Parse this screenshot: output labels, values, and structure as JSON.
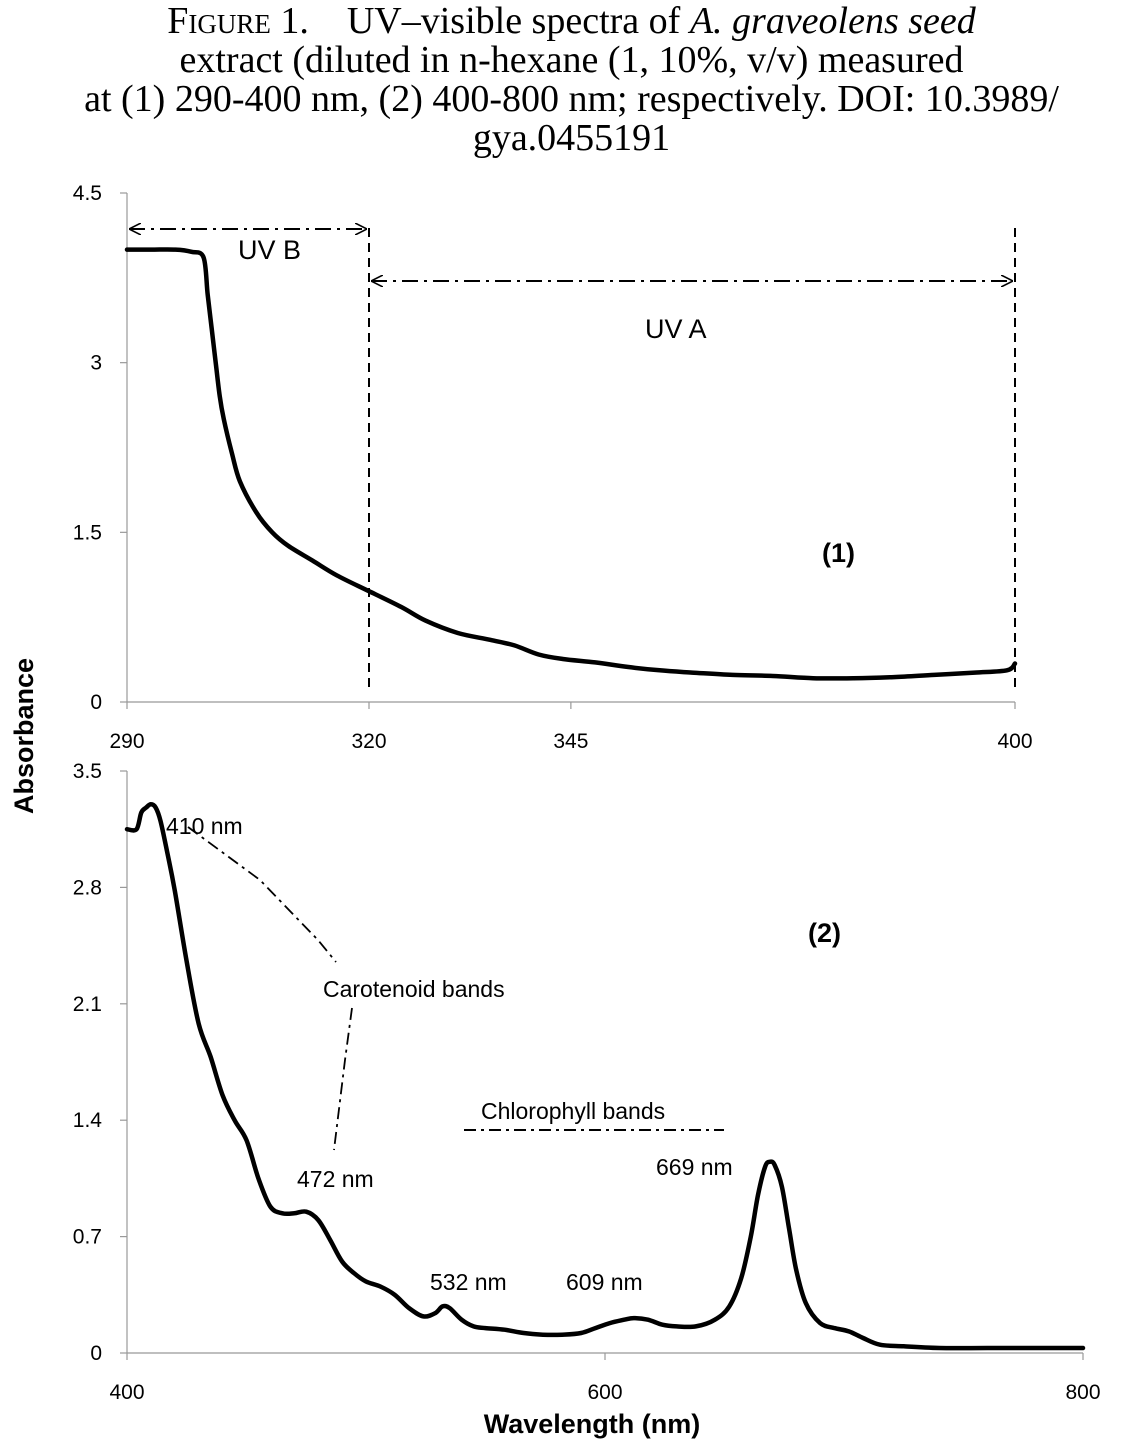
{
  "caption": {
    "figure_label": "Figure 1.",
    "line1": "UV–visible spectra of ",
    "line1_italic": "A. graveolens seed",
    "line2": "extract (diluted in n-hexane (1, 10%, v/v) measured",
    "line3": "at (1) 290-400 nm, (2) 400-800 nm; respectively. DOI: 10.3989/",
    "line4": "gya.0455191"
  },
  "chart_data": [
    {
      "type": "line",
      "panel_label": "(1)",
      "ylabel": "Absorbance",
      "xlim": [
        290,
        400
      ],
      "ylim": [
        0,
        4.5
      ],
      "x_ticks": [
        290,
        320,
        345,
        400
      ],
      "y_ticks": [
        "0",
        "1.5",
        "3",
        "4.5"
      ],
      "grid": false,
      "annotations": [
        {
          "text": "UV B",
          "from": 290,
          "to": 320
        },
        {
          "text": "UV A",
          "from": 320,
          "to": 400
        }
      ],
      "series": [
        {
          "x": [
            290,
            293,
            296,
            298,
            299.5,
            300,
            300.5,
            301,
            301.5,
            302,
            303,
            304,
            306,
            308,
            310,
            313,
            316,
            320,
            324,
            327,
            331,
            335,
            338,
            341,
            344,
            348,
            352,
            356,
            360,
            365,
            370,
            375,
            380,
            385,
            390,
            395,
            399,
            400
          ],
          "y": [
            4.0,
            4.0,
            4.0,
            3.98,
            3.93,
            3.6,
            3.3,
            3.0,
            2.7,
            2.5,
            2.2,
            1.95,
            1.68,
            1.5,
            1.38,
            1.25,
            1.12,
            0.98,
            0.84,
            0.72,
            0.61,
            0.55,
            0.5,
            0.42,
            0.38,
            0.35,
            0.31,
            0.28,
            0.26,
            0.24,
            0.23,
            0.21,
            0.21,
            0.22,
            0.24,
            0.26,
            0.28,
            0.34
          ]
        }
      ]
    },
    {
      "type": "line",
      "panel_label": "(2)",
      "xlabel": "Wavelength (nm)",
      "xlim": [
        400,
        800
      ],
      "ylim": [
        0,
        3.5
      ],
      "x_ticks": [
        400,
        600,
        800
      ],
      "y_ticks": [
        "0",
        "0.7",
        "1.4",
        "2.1",
        "2.8",
        "3.5"
      ],
      "grid": false,
      "peak_labels": [
        "410 nm",
        "472 nm",
        "532 nm",
        "609 nm",
        "669 nm"
      ],
      "band_labels": [
        "Carotenoid bands",
        "Chlorophyll bands"
      ],
      "series": [
        {
          "x": [
            400,
            404,
            406,
            408,
            410,
            412,
            414,
            417,
            420,
            425,
            430,
            435,
            440,
            445,
            450,
            455,
            460,
            465,
            470,
            475,
            480,
            485,
            490,
            495,
            500,
            506,
            512,
            518,
            524,
            529,
            532,
            535,
            540,
            545,
            550,
            558,
            566,
            574,
            582,
            590,
            596,
            602,
            608,
            612,
            618,
            624,
            630,
            638,
            646,
            652,
            657,
            661,
            664,
            667,
            669,
            671,
            674,
            677,
            680,
            684,
            690,
            696,
            702,
            708,
            715,
            725,
            740,
            760,
            780,
            800
          ],
          "y": [
            3.15,
            3.15,
            3.25,
            3.28,
            3.3,
            3.28,
            3.2,
            3.0,
            2.78,
            2.35,
            1.98,
            1.78,
            1.55,
            1.4,
            1.28,
            1.05,
            0.88,
            0.84,
            0.84,
            0.85,
            0.8,
            0.68,
            0.55,
            0.48,
            0.43,
            0.4,
            0.35,
            0.27,
            0.22,
            0.24,
            0.28,
            0.27,
            0.2,
            0.16,
            0.15,
            0.14,
            0.12,
            0.11,
            0.11,
            0.12,
            0.15,
            0.18,
            0.2,
            0.21,
            0.2,
            0.17,
            0.16,
            0.16,
            0.2,
            0.28,
            0.45,
            0.7,
            0.95,
            1.12,
            1.15,
            1.13,
            1.0,
            0.75,
            0.5,
            0.3,
            0.18,
            0.15,
            0.13,
            0.09,
            0.05,
            0.04,
            0.03,
            0.03,
            0.03,
            0.03
          ]
        }
      ]
    }
  ]
}
